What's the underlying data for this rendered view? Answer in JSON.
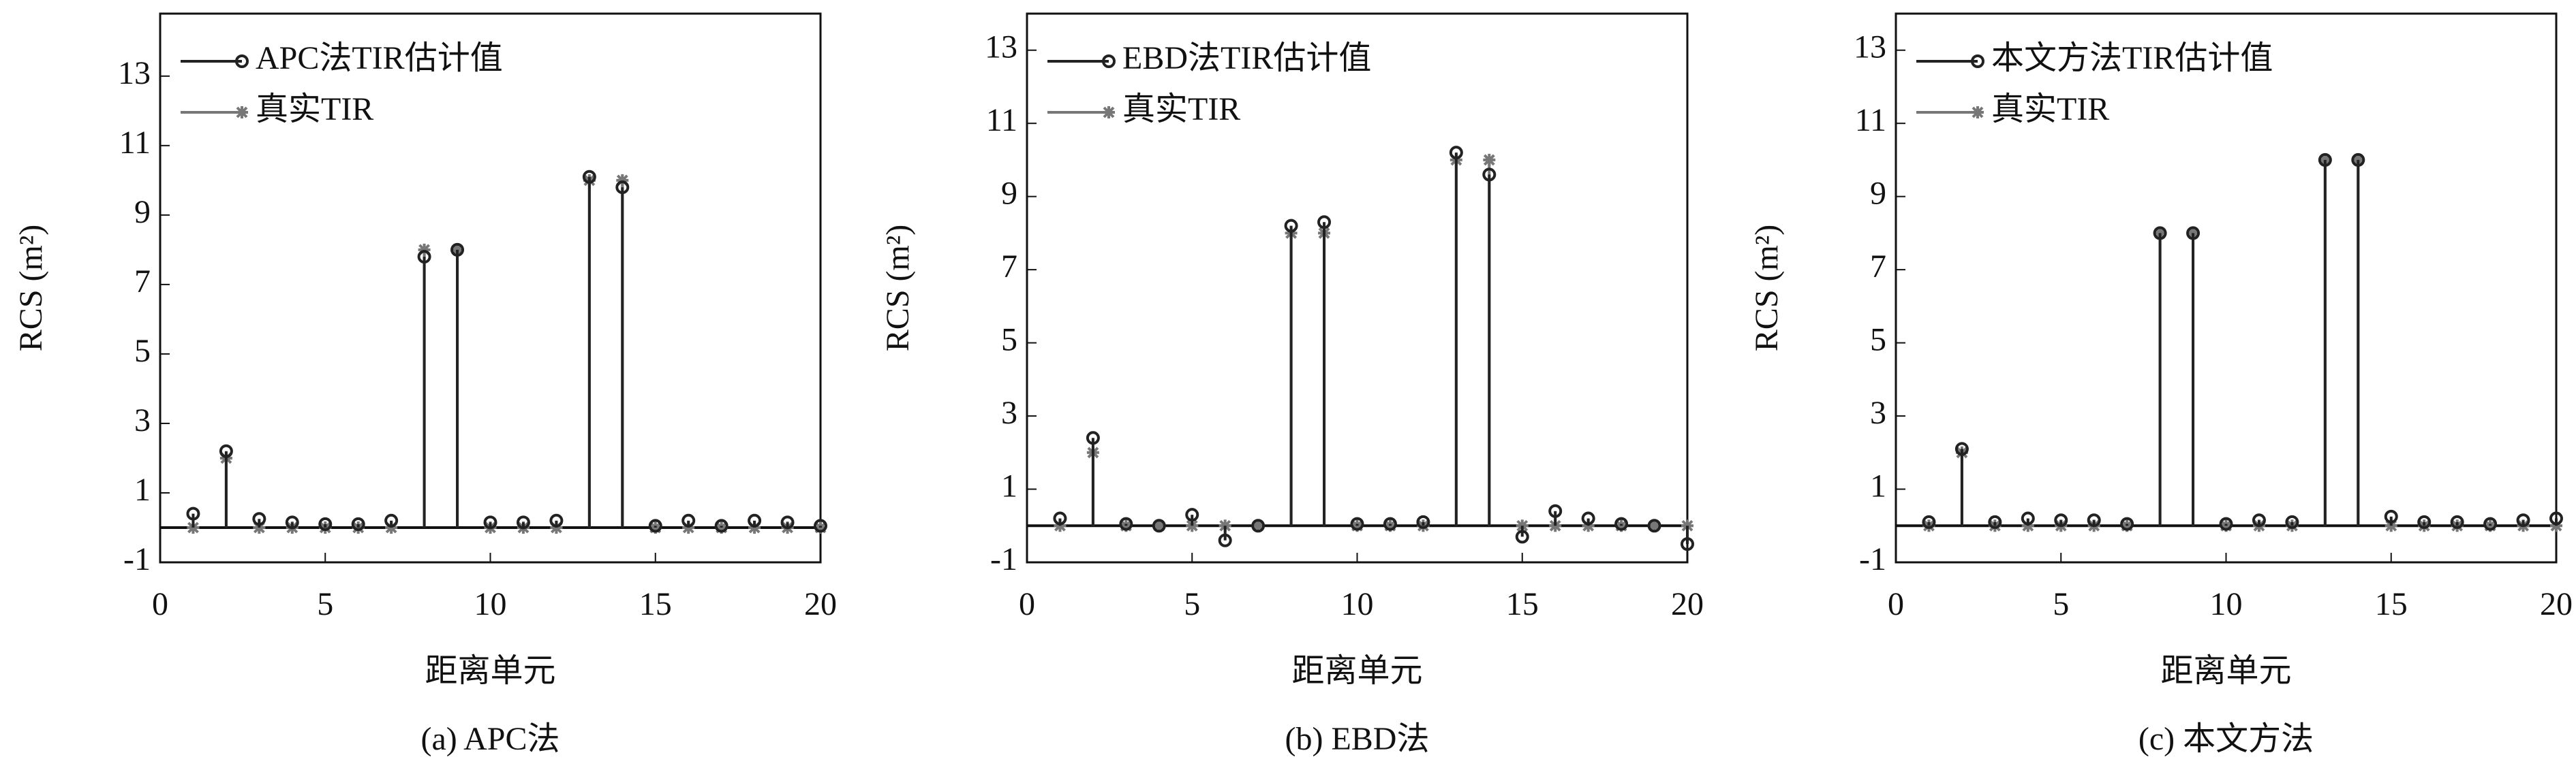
{
  "chart_data": [
    {
      "type": "stem",
      "title": "(a) APC法",
      "xlabel": "距离单元",
      "ylabel": "RCS (m²)",
      "x": [
        1,
        2,
        3,
        4,
        5,
        6,
        7,
        8,
        9,
        10,
        11,
        12,
        13,
        14,
        15,
        16,
        17,
        18,
        19,
        20
      ],
      "series": [
        {
          "name": "APC法TIR估计值",
          "color": "#222222",
          "marker": "circle",
          "values": [
            0.4,
            2.2,
            0.25,
            0.15,
            0.1,
            0.1,
            0.2,
            7.8,
            8.0,
            0.15,
            0.15,
            0.2,
            10.1,
            9.8,
            0.05,
            0.2,
            0.05,
            0.2,
            0.15,
            0.05
          ]
        },
        {
          "name": "真实TIR",
          "color": "#777777",
          "marker": "asterisk",
          "values": [
            0,
            2,
            0,
            0,
            0,
            0,
            0,
            8,
            8,
            0,
            0,
            0,
            10,
            10,
            0,
            0,
            0,
            0,
            0,
            0
          ]
        }
      ],
      "xlim": [
        0,
        20
      ],
      "xticks": [
        0,
        5,
        10,
        15,
        20
      ],
      "ylim": [
        -1,
        14.8
      ],
      "yticks": [
        -1,
        1,
        3,
        5,
        7,
        9,
        11,
        13
      ]
    },
    {
      "type": "stem",
      "title": "(b) EBD法",
      "xlabel": "距离单元",
      "ylabel": "RCS (m²)",
      "x": [
        1,
        2,
        3,
        4,
        5,
        6,
        7,
        8,
        9,
        10,
        11,
        12,
        13,
        14,
        15,
        16,
        17,
        18,
        19,
        20
      ],
      "series": [
        {
          "name": "EBD法TIR估计值",
          "color": "#222222",
          "marker": "circle",
          "values": [
            0.2,
            2.4,
            0.05,
            0,
            0.3,
            -0.4,
            0,
            8.2,
            8.3,
            0.05,
            0.05,
            0.1,
            10.2,
            9.6,
            -0.3,
            0.4,
            0.2,
            0.05,
            0,
            -0.5
          ]
        },
        {
          "name": "真实TIR",
          "color": "#777777",
          "marker": "asterisk",
          "values": [
            0,
            2,
            0,
            0,
            0,
            0,
            0,
            8,
            8,
            0,
            0,
            0,
            10,
            10,
            0,
            0,
            0,
            0,
            0,
            0
          ]
        }
      ],
      "xlim": [
        0,
        20
      ],
      "xticks": [
        0,
        5,
        10,
        15,
        20
      ],
      "ylim": [
        -1,
        14
      ],
      "yticks": [
        -1,
        1,
        3,
        5,
        7,
        9,
        11,
        13
      ]
    },
    {
      "type": "stem",
      "title": "(c) 本文方法",
      "xlabel": "距离单元",
      "ylabel": "RCS (m²)",
      "x": [
        1,
        2,
        3,
        4,
        5,
        6,
        7,
        8,
        9,
        10,
        11,
        12,
        13,
        14,
        15,
        16,
        17,
        18,
        19,
        20
      ],
      "series": [
        {
          "name": "本文方法TIR估计值",
          "color": "#222222",
          "marker": "circle",
          "values": [
            0.1,
            2.1,
            0.1,
            0.2,
            0.15,
            0.15,
            0.05,
            8,
            8,
            0.05,
            0.15,
            0.1,
            10,
            10,
            0.25,
            0.1,
            0.1,
            0.05,
            0.15,
            0.2
          ]
        },
        {
          "name": "真实TIR",
          "color": "#777777",
          "marker": "asterisk",
          "values": [
            0,
            2,
            0,
            0,
            0,
            0,
            0,
            8,
            8,
            0,
            0,
            0,
            10,
            10,
            0,
            0,
            0,
            0,
            0,
            0
          ]
        }
      ],
      "xlim": [
        0,
        20
      ],
      "xticks": [
        0,
        5,
        10,
        15,
        20
      ],
      "ylim": [
        -1,
        14
      ],
      "yticks": [
        -1,
        1,
        3,
        5,
        7,
        9,
        11,
        13
      ]
    }
  ]
}
